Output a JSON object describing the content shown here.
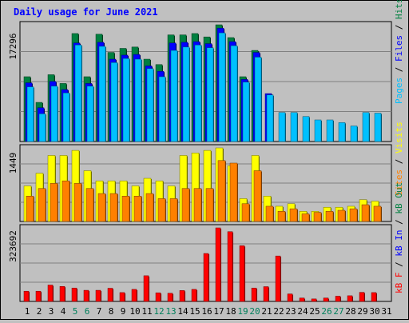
{
  "chart_data": {
    "type": "bar",
    "title": "Daily usage for June 2021",
    "categories": [
      "1",
      "2",
      "3",
      "4",
      "5",
      "6",
      "7",
      "8",
      "9",
      "10",
      "11",
      "12",
      "13",
      "14",
      "15",
      "16",
      "17",
      "18",
      "19",
      "20",
      "21",
      "22",
      "23",
      "24",
      "25",
      "26",
      "27",
      "28",
      "29",
      "30",
      "31"
    ],
    "weekend_days": [
      "5",
      "6",
      "12",
      "13",
      "19",
      "20",
      "26",
      "27"
    ],
    "panels": [
      {
        "id": "top",
        "ylabel_max": "17296",
        "ymax": 17296,
        "legend": [
          "Pages",
          "Files",
          "Hits"
        ],
        "series": [
          {
            "name": "Hits",
            "color": "#008040",
            "values": [
              9600,
              5800,
              9900,
              8600,
              16000,
              9600,
              15900,
              13200,
              13800,
              14000,
              12200,
              11400,
              15800,
              15800,
              16000,
              15500,
              17296,
              15400,
              9600,
              13500,
              0,
              0,
              0,
              0,
              0,
              0,
              0,
              0,
              0,
              0,
              0
            ]
          },
          {
            "name": "Files",
            "color": "#0000FF",
            "values": [
              8700,
              5000,
              8900,
              7700,
              14600,
              8600,
              14700,
              12200,
              12800,
              12900,
              11200,
              10400,
              14600,
              14700,
              14800,
              14500,
              16800,
              14800,
              9200,
              13200,
              7100,
              0,
              0,
              0,
              0,
              0,
              0,
              0,
              0,
              0,
              0
            ]
          },
          {
            "name": "Pages",
            "color": "#00C0FF",
            "values": [
              8100,
              4100,
              8200,
              7200,
              14300,
              8200,
              14100,
              11700,
              12300,
              12200,
              10800,
              9600,
              13500,
              14000,
              14300,
              13900,
              16100,
              14200,
              8800,
              12500,
              6900,
              4300,
              4300,
              3700,
              3200,
              3200,
              2800,
              2300,
              4300,
              4200,
              0
            ]
          }
        ]
      },
      {
        "id": "middle",
        "ylabel_max": "1449",
        "ymax": 1449,
        "legend": [
          "Sites",
          "Visits"
        ],
        "series": [
          {
            "name": "Visits",
            "color": "#FFFF00",
            "values": [
              700,
              950,
              1300,
              1300,
              1400,
              1000,
              800,
              800,
              800,
              700,
              850,
              800,
              700,
              1300,
              1350,
              1400,
              1449,
              1100,
              450,
              1300,
              500,
              300,
              350,
              200,
              200,
              280,
              280,
              300,
              430,
              400,
              0
            ]
          },
          {
            "name": "Sites",
            "color": "#FF8000",
            "values": [
              500,
              650,
              750,
              800,
              750,
              650,
              550,
              550,
              500,
              500,
              550,
              450,
              450,
              650,
              650,
              650,
              1200,
              1150,
              350,
              1000,
              300,
              200,
              250,
              150,
              180,
              200,
              220,
              250,
              330,
              300,
              0
            ]
          }
        ]
      },
      {
        "id": "bottom",
        "ylabel_max": "323692",
        "ymax": 323692,
        "legend": [
          "kB F",
          "kB In",
          "kB Out"
        ],
        "series": [
          {
            "name": "kB F",
            "color": "#FF0000",
            "values": [
              45000,
              45000,
              72000,
              66000,
              59000,
              49000,
              49000,
              58000,
              39000,
              53000,
              113000,
              38000,
              36000,
              48000,
              53000,
              211000,
              323692,
              307000,
              245000,
              59000,
              65000,
              200000,
              33000,
              15000,
              11000,
              15000,
              23000,
              25000,
              40000,
              39000,
              0
            ]
          }
        ]
      }
    ],
    "xlabel": "",
    "ylabel": ""
  }
}
